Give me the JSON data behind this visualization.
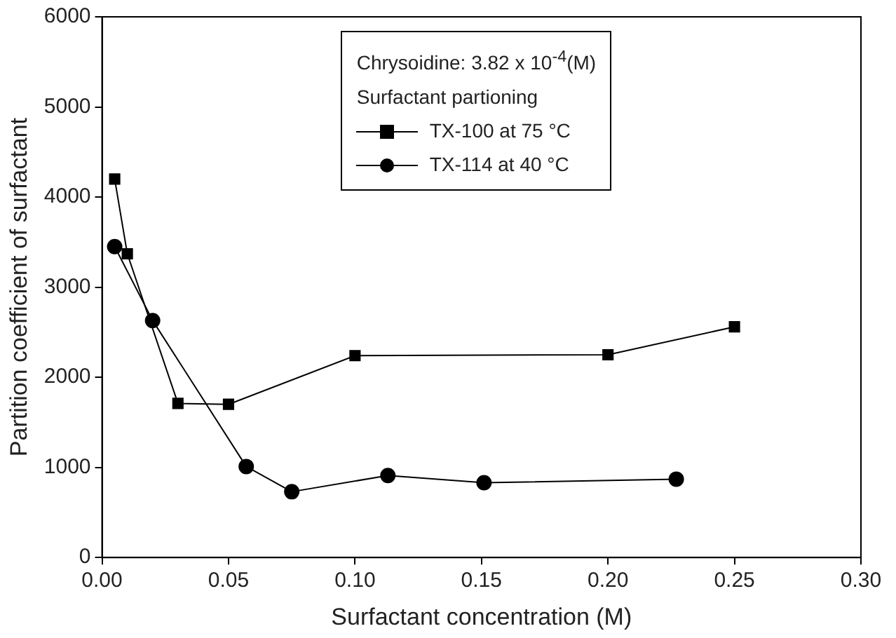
{
  "chart_data": {
    "type": "line",
    "xlabel": "Surfactant concentration (M)",
    "ylabel": "Partition coefficient of surfactant",
    "legend_title": "Chrysoidine: 3.82 x 10$^{-4}$(M)",
    "annotations": [
      "Surfactant partioning"
    ],
    "series": [
      {
        "name": "TX-100 at 75 °C",
        "color": "#000000",
        "marker": "square",
        "x": [
          0.005,
          0.01,
          0.03,
          0.05,
          0.1,
          0.2,
          0.25
        ],
        "values": [
          4200,
          3370,
          1710,
          1700,
          2240,
          2250,
          2560
        ]
      },
      {
        "name": "TX-114 at 40 °C",
        "color": "#000000",
        "marker": "circle",
        "x": [
          0.005,
          0.02,
          0.057,
          0.075,
          0.113,
          0.151,
          0.227
        ],
        "values": [
          3450,
          2630,
          1010,
          730,
          910,
          830,
          870
        ]
      }
    ],
    "xlim": [
      0,
      0.3
    ],
    "xticks": [
      {
        "value": 0,
        "label": "0.00"
      },
      {
        "value": 0.05,
        "label": "0.05"
      },
      {
        "value": 0.1,
        "label": "0.10"
      },
      {
        "value": 0.15,
        "label": "0.15"
      },
      {
        "value": 0.2,
        "label": "0.20"
      },
      {
        "value": 0.25,
        "label": "0.25"
      },
      {
        "value": 0.3,
        "label": "0.30"
      }
    ],
    "ylim": [
      0,
      6000
    ],
    "yticks": [
      0,
      1000,
      2000,
      3000,
      4000,
      5000,
      6000
    ],
    "grid": false,
    "legend": "top",
    "line_style": "solid"
  }
}
